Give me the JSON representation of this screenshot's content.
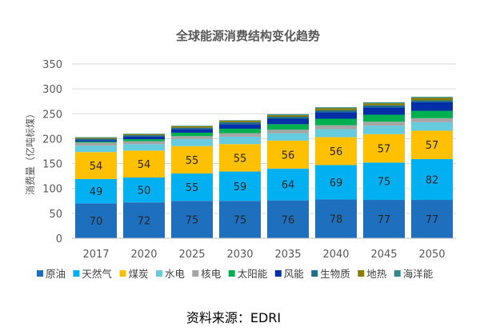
{
  "chart_data": {
    "type": "bar",
    "stacked": true,
    "title": "全球能源消费结构变化趋势",
    "xlabel": "",
    "ylabel": "消费量（亿吨标煤）",
    "ylim": [
      0,
      350
    ],
    "yticks": [
      0,
      50,
      100,
      150,
      200,
      250,
      300,
      350
    ],
    "grid": true,
    "legend_position": "bottom",
    "categories": [
      "2017",
      "2020",
      "2025",
      "2030",
      "2035",
      "2040",
      "2045",
      "2050"
    ],
    "series": [
      {
        "name": "原油",
        "color": "#1F6FBF",
        "values": [
          70,
          72,
          75,
          75,
          76,
          78,
          77,
          77
        ],
        "labeled": true
      },
      {
        "name": "天然气",
        "color": "#00B0F0",
        "values": [
          49,
          50,
          55,
          59,
          64,
          69,
          75,
          82
        ],
        "labeled": true
      },
      {
        "name": "煤炭",
        "color": "#FFC000",
        "values": [
          54,
          54,
          55,
          55,
          56,
          56,
          57,
          57
        ],
        "labeled": true
      },
      {
        "name": "水电",
        "color": "#66CCDD",
        "values": [
          13,
          13,
          14,
          15,
          15,
          16,
          17,
          17
        ],
        "labeled": false
      },
      {
        "name": "核电",
        "color": "#A5A5A5",
        "values": [
          6,
          6,
          6,
          7,
          7,
          8,
          8,
          8
        ],
        "labeled": false
      },
      {
        "name": "太阳能",
        "color": "#00B050",
        "values": [
          2,
          4,
          7,
          9,
          11,
          13,
          14,
          15
        ],
        "labeled": false
      },
      {
        "name": "风能",
        "color": "#002FA7",
        "values": [
          3,
          5,
          7,
          9,
          11,
          13,
          15,
          17
        ],
        "labeled": false
      },
      {
        "name": "生物质",
        "color": "#1F6E8C",
        "values": [
          3,
          3,
          3,
          4,
          4,
          4,
          4,
          4
        ],
        "labeled": false
      },
      {
        "name": "地热",
        "color": "#8B7D00",
        "values": [
          2,
          2,
          3,
          3,
          3,
          4,
          4,
          5
        ],
        "labeled": false
      },
      {
        "name": "海洋能",
        "color": "#2E8B8B",
        "values": [
          1,
          1,
          1,
          1,
          2,
          2,
          2,
          2
        ],
        "labeled": false
      }
    ]
  },
  "source": "资料来源：EDRI"
}
